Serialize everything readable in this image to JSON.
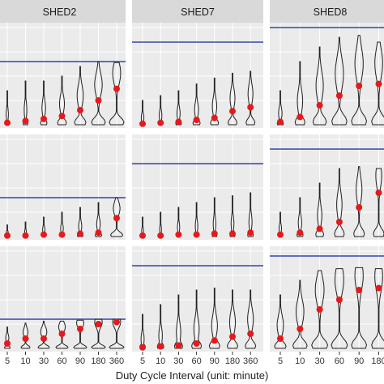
{
  "chart_data": {
    "type": "violin",
    "xlabel": "Duty Cycle Interval (unit: minute)",
    "panel_titles": [
      "SHED2",
      "SHED7",
      "SHED8"
    ],
    "columns": [
      {
        "title": "SHED2",
        "categories": [
          "5",
          "10",
          "30",
          "60",
          "90",
          "180",
          "360"
        ]
      },
      {
        "title": "SHED7",
        "categories": [
          "5",
          "10",
          "30",
          "60",
          "90",
          "180",
          "360"
        ]
      },
      {
        "title": "SHED8",
        "categories": [
          "5",
          "10",
          "30",
          "60",
          "90",
          "180"
        ]
      }
    ],
    "y_axis_note": "no y tick labels visible; values normalized 0-1 within each panel",
    "panels": [
      {
        "row": 0,
        "col": 0,
        "reference_line": 0.65,
        "medians": [
          0.02,
          0.04,
          0.06,
          0.09,
          0.15,
          0.25,
          0.37
        ],
        "violin_top": [
          0.35,
          0.45,
          0.45,
          0.5,
          0.6,
          0.65,
          0.64
        ],
        "violin_width": [
          0.25,
          0.3,
          0.4,
          0.55,
          0.7,
          0.85,
          0.9
        ]
      },
      {
        "row": 0,
        "col": 1,
        "reference_line": 0.85,
        "medians": [
          0.01,
          0.02,
          0.03,
          0.05,
          0.07,
          0.14,
          0.18
        ],
        "violin_top": [
          0.25,
          0.3,
          0.35,
          0.42,
          0.48,
          0.53,
          0.55
        ],
        "violin_width": [
          0.3,
          0.3,
          0.35,
          0.45,
          0.5,
          0.55,
          0.55
        ]
      },
      {
        "row": 0,
        "col": 2,
        "reference_line": 1.0,
        "medians": [
          0.03,
          0.08,
          0.2,
          0.3,
          0.4,
          0.42
        ],
        "violin_top": [
          0.35,
          0.65,
          0.8,
          0.9,
          0.92,
          0.85
        ],
        "violin_width": [
          0.35,
          0.55,
          0.75,
          0.85,
          0.85,
          0.8
        ]
      },
      {
        "row": 1,
        "col": 0,
        "reference_line": 0.4,
        "medians": [
          0.01,
          0.01,
          0.02,
          0.02,
          0.03,
          0.04,
          0.19
        ],
        "violin_top": [
          0.12,
          0.15,
          0.2,
          0.25,
          0.3,
          0.35,
          0.4
        ],
        "violin_width": [
          0.2,
          0.2,
          0.25,
          0.3,
          0.35,
          0.4,
          0.75
        ]
      },
      {
        "row": 1,
        "col": 1,
        "reference_line": 0.75,
        "medians": [
          0.01,
          0.01,
          0.02,
          0.02,
          0.03,
          0.03,
          0.04
        ],
        "violin_top": [
          0.2,
          0.25,
          0.3,
          0.35,
          0.4,
          0.42,
          0.45
        ],
        "violin_width": [
          0.2,
          0.2,
          0.25,
          0.28,
          0.3,
          0.32,
          0.35
        ]
      },
      {
        "row": 1,
        "col": 2,
        "reference_line": 0.9,
        "medians": [
          0.02,
          0.04,
          0.08,
          0.15,
          0.3,
          0.45
        ],
        "violin_top": [
          0.25,
          0.4,
          0.55,
          0.7,
          0.72,
          0.7
        ],
        "violin_width": [
          0.25,
          0.35,
          0.45,
          0.55,
          0.6,
          0.6
        ]
      },
      {
        "row": 2,
        "col": 0,
        "reference_line": 0.3,
        "medians": [
          0.05,
          0.1,
          0.1,
          0.15,
          0.2,
          0.25,
          0.27
        ],
        "violin_top": [
          0.22,
          0.26,
          0.28,
          0.28,
          0.29,
          0.3,
          0.3
        ],
        "violin_width": [
          0.35,
          0.55,
          0.7,
          0.75,
          0.8,
          0.85,
          0.9
        ]
      },
      {
        "row": 2,
        "col": 1,
        "reference_line": 0.85,
        "medians": [
          0.01,
          0.02,
          0.03,
          0.05,
          0.08,
          0.12,
          0.15
        ],
        "violin_top": [
          0.35,
          0.45,
          0.55,
          0.6,
          0.62,
          0.6,
          0.6
        ],
        "violin_width": [
          0.35,
          0.4,
          0.5,
          0.6,
          0.65,
          0.65,
          0.65
        ]
      },
      {
        "row": 2,
        "col": 2,
        "reference_line": 0.95,
        "medians": [
          0.1,
          0.2,
          0.4,
          0.5,
          0.6,
          0.62
        ],
        "violin_top": [
          0.55,
          0.7,
          0.8,
          0.82,
          0.83,
          0.82
        ],
        "violin_width": [
          0.65,
          0.8,
          0.9,
          0.9,
          0.85,
          0.8
        ]
      }
    ],
    "colors": {
      "panel_bg": "#ebebeb",
      "grid": "#ffffff",
      "strip_bg": "#d9d9d9",
      "reference_line": "#3545a8",
      "median_point": "#e41a1c",
      "violin_outline": "#222222"
    }
  }
}
